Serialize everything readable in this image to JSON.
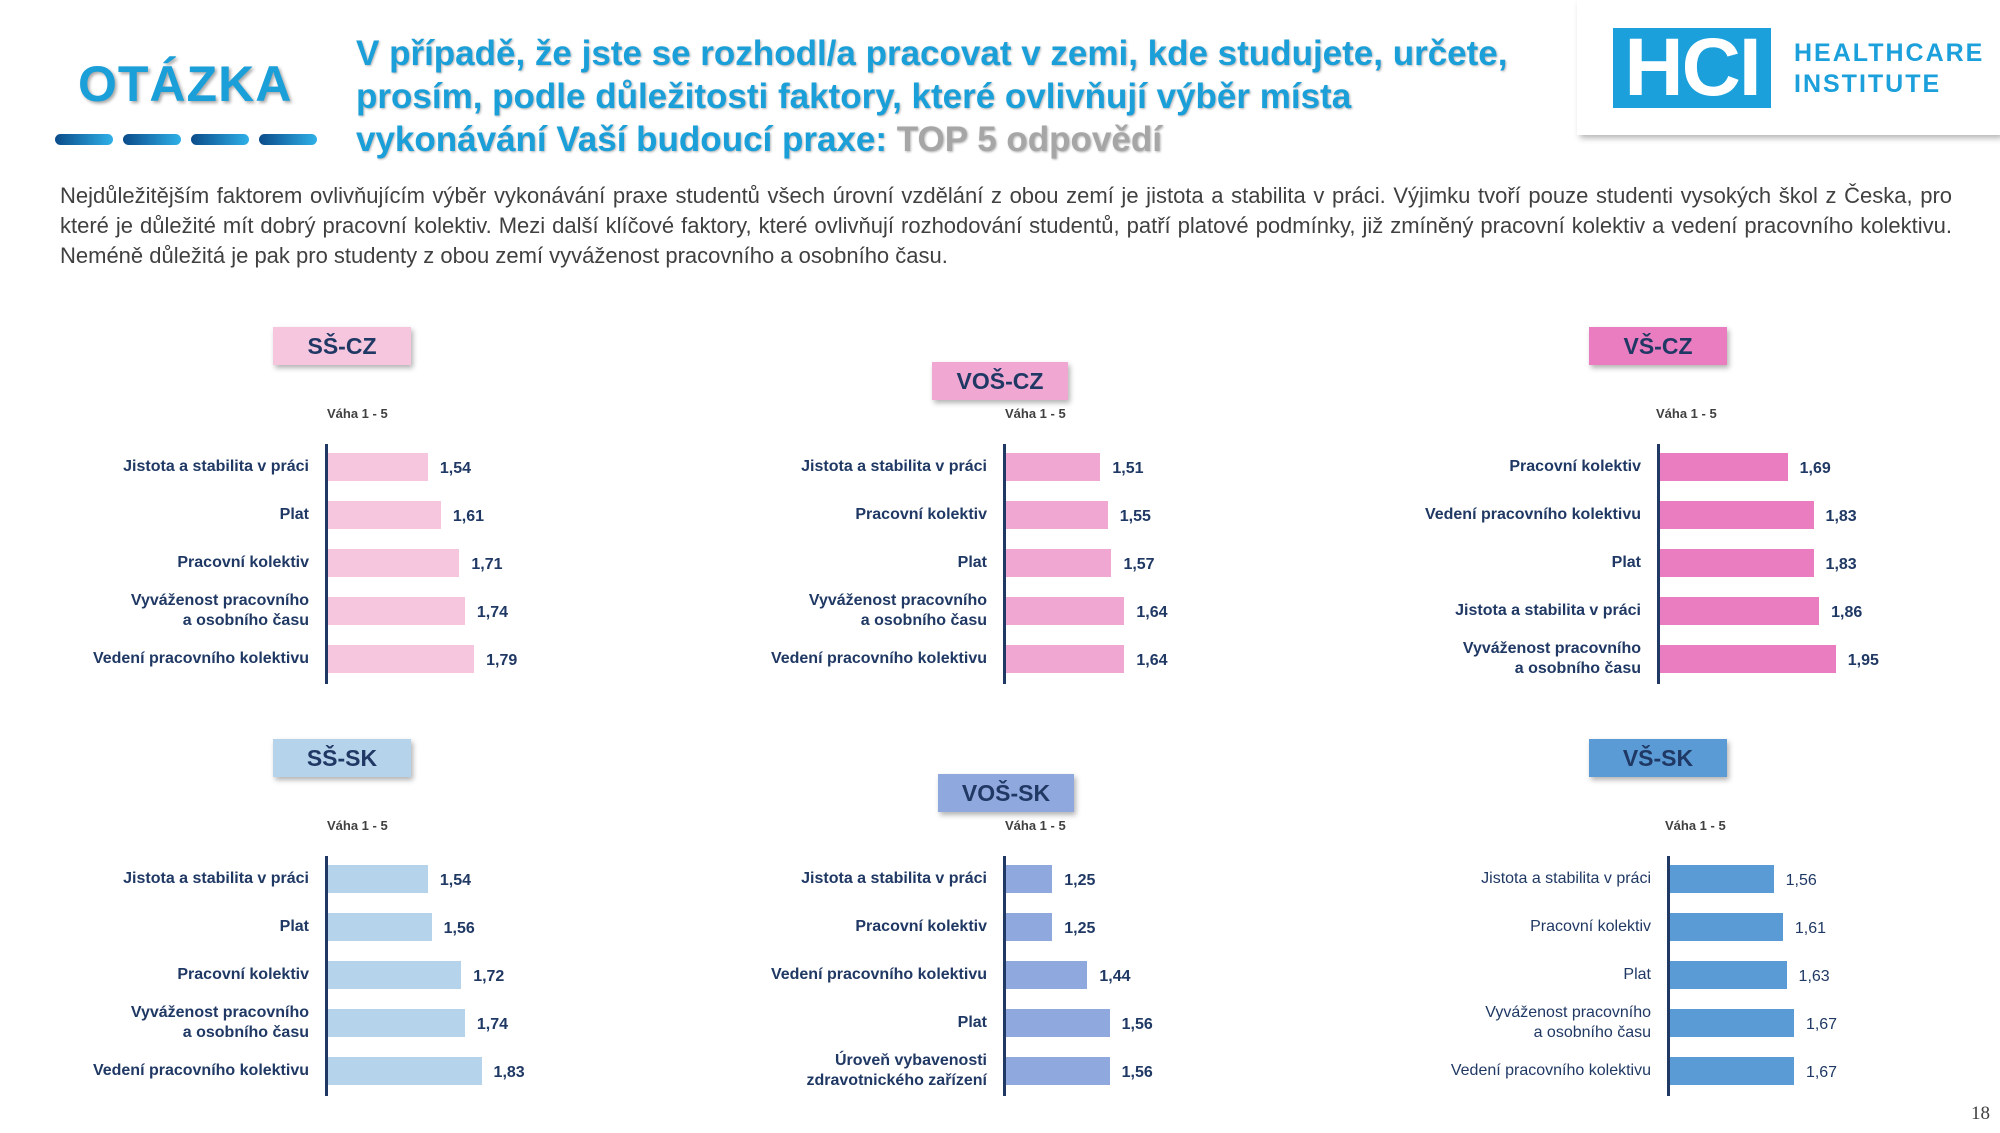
{
  "header": {
    "label": "OTÁZKA",
    "title": "V případě, že jste se rozhodl/a pracovat v zemi, kde studujete, určete, prosím, podle důležitosti faktory, které ovlivňují výběr místa vykonávání Vaší budoucí praxe:",
    "title_suffix": "TOP 5 odpovědí"
  },
  "logo": {
    "mark": "HCI",
    "line1": "HEALTHCARE",
    "line2": "INSTITUTE"
  },
  "intro": "Nejdůležitějším faktorem ovlivňujícím výběr vykonávání praxe studentů všech úrovní vzdělání z obou zemí je jistota a stabilita v práci. Výjimku tvoří pouze studenti vysokých škol z Česka, pro které je důležité mít dobrý pracovní kolektiv. Mezi další klíčové faktory, které ovlivňují rozhodování studentů, patří platové podmínky, již zmíněný pracovní kolektiv a vedení pracovního kolektivu. Neméně důležitá je pak pro studenty z obou zemí vyváženost pracovního a osobního času.",
  "page_number": "18",
  "colors": {
    "ss_cz": "#f5c6de",
    "vos_cz": "#f0a8d3",
    "vs_cz": "#ea7cc0",
    "ss_sk": "#b6d3ec",
    "vos_sk": "#8fa9de",
    "vs_sk": "#5b9bd5"
  },
  "chart_data": [
    {
      "type": "bar",
      "orientation": "horizontal",
      "title": "SŠ-CZ",
      "xlabel": "Váha 1 - 5",
      "categories": [
        "Jistota a stabilita v práci",
        "Plat",
        "Pracovní kolektiv",
        "Vyváženost pracovního\na osobního času",
        "Vedení pracovního kolektivu"
      ],
      "values": [
        1.54,
        1.61,
        1.71,
        1.74,
        1.79
      ],
      "labels": [
        "1,54",
        "1,61",
        "1,71",
        "1,74",
        "1,79"
      ]
    },
    {
      "type": "bar",
      "orientation": "horizontal",
      "title": "VOŠ-CZ",
      "xlabel": "Váha 1 - 5",
      "categories": [
        "Jistota a stabilita v práci",
        "Pracovní kolektiv",
        "Plat",
        "Vyváženost pracovního\na osobního času",
        "Vedení pracovního kolektivu"
      ],
      "values": [
        1.51,
        1.55,
        1.57,
        1.64,
        1.64
      ],
      "labels": [
        "1,51",
        "1,55",
        "1,57",
        "1,64",
        "1,64"
      ]
    },
    {
      "type": "bar",
      "orientation": "horizontal",
      "title": "VŠ-CZ",
      "xlabel": "Váha 1 - 5",
      "categories": [
        "Pracovní kolektiv",
        "Vedení pracovního kolektivu",
        "Plat",
        "Jistota a stabilita v práci",
        "Vyváženost pracovního\na osobního času"
      ],
      "values": [
        1.69,
        1.83,
        1.83,
        1.86,
        1.95
      ],
      "labels": [
        "1,69",
        "1,83",
        "1,83",
        "1,86",
        "1,95"
      ]
    },
    {
      "type": "bar",
      "orientation": "horizontal",
      "title": "SŠ-SK",
      "xlabel": "Váha 1 - 5",
      "categories": [
        "Jistota a stabilita v práci",
        "Plat",
        "Pracovní kolektiv",
        "Vyváženost pracovního\na osobního času",
        "Vedení pracovního kolektivu"
      ],
      "values": [
        1.54,
        1.56,
        1.72,
        1.74,
        1.83
      ],
      "labels": [
        "1,54",
        "1,56",
        "1,72",
        "1,74",
        "1,83"
      ]
    },
    {
      "type": "bar",
      "orientation": "horizontal",
      "title": "VOŠ-SK",
      "xlabel": "Váha 1 - 5",
      "categories": [
        "Jistota a stabilita v práci",
        "Pracovní kolektiv",
        "Vedení pracovního kolektivu",
        "Plat",
        "Úroveň vybavenosti\nzdravotnického zařízení"
      ],
      "values": [
        1.25,
        1.25,
        1.44,
        1.56,
        1.56
      ],
      "labels": [
        "1,25",
        "1,25",
        "1,44",
        "1,56",
        "1,56"
      ]
    },
    {
      "type": "bar",
      "orientation": "horizontal",
      "title": "VŠ-SK",
      "xlabel": "Váha 1 - 5",
      "categories": [
        "Jistota a stabilita v práci",
        "Pracovní kolektiv",
        "Plat",
        "Vyváženost pracovního\na osobního času",
        "Vedení pracovního kolektivu"
      ],
      "values": [
        1.56,
        1.61,
        1.63,
        1.67,
        1.67
      ],
      "labels": [
        "1,56",
        "1,61",
        "1,63",
        "1,67",
        "1,67"
      ]
    }
  ]
}
